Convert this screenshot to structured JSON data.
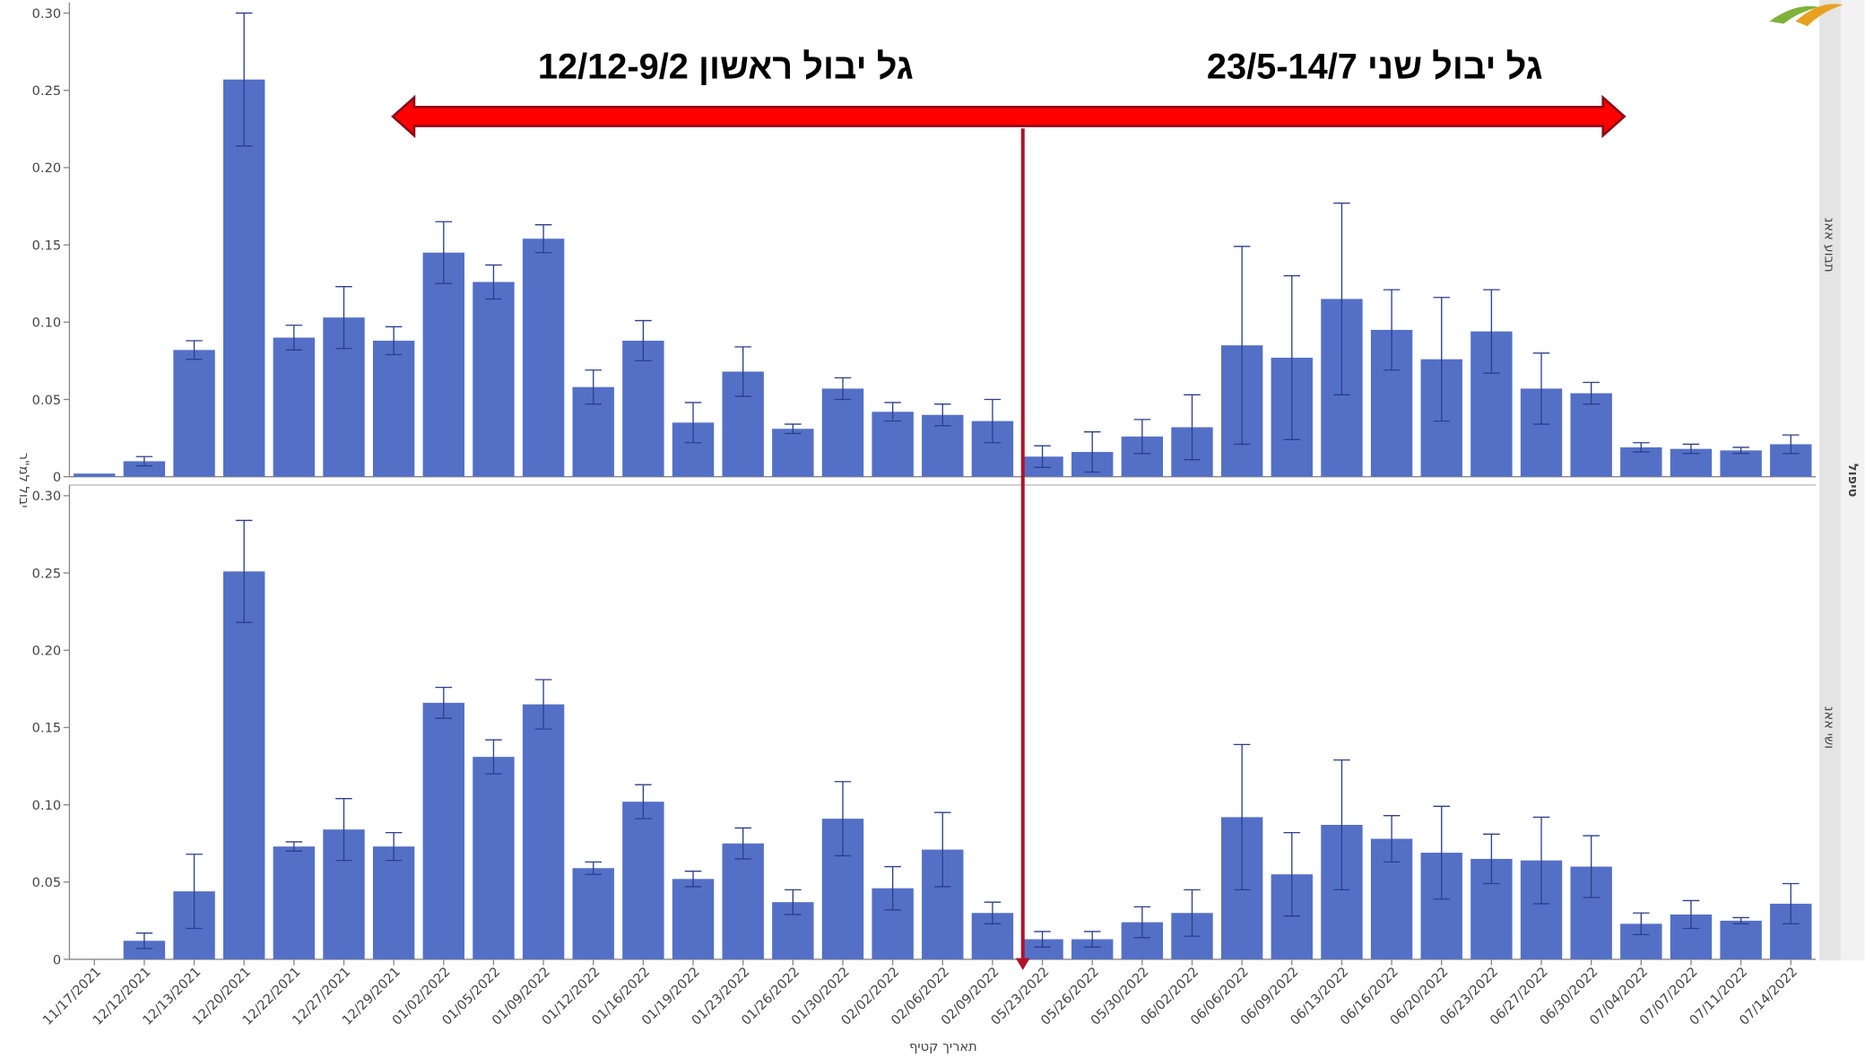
{
  "chart_data": [
    {
      "type": "bar",
      "panel_label": "תבוע אאנ",
      "color": "#5470c6",
      "y_label": "יבול למ\"ר",
      "annotations": [
        "גל יבול ראשון 12/12-9/2",
        "גל יבול שני 23/5-14/7"
      ],
      "facet_label": "טיפול",
      "ylim": [
        0,
        0.3
      ],
      "yticks": [
        0,
        0.05,
        {
          "value": 0.1,
          "label": "0.10"
        },
        0.15,
        {
          "value": 0.2,
          "label": "0.20"
        },
        0.25,
        {
          "value": 0.3,
          "label": "0.30"
        }
      ],
      "values": [
        0.002,
        0.01,
        0.082,
        0.257,
        0.09,
        0.103,
        0.088,
        0.145,
        0.126,
        0.154,
        0.058,
        0.088,
        0.035,
        0.068,
        0.031,
        0.057,
        0.042,
        0.04,
        0.036,
        0.013,
        0.016,
        0.026,
        0.032,
        0.085,
        0.077,
        0.115,
        0.095,
        0.076,
        0.094,
        0.057,
        0.054,
        0.019,
        0.018,
        0.017,
        0.021
      ],
      "errors": [
        0.0,
        0.003,
        0.006,
        0.043,
        0.008,
        0.02,
        0.009,
        0.02,
        0.011,
        0.009,
        0.011,
        0.013,
        0.013,
        0.016,
        0.003,
        0.007,
        0.006,
        0.007,
        0.014,
        0.007,
        0.013,
        0.011,
        0.021,
        0.064,
        0.053,
        0.062,
        0.026,
        0.04,
        0.027,
        0.023,
        0.007,
        0.003,
        0.003,
        0.002,
        0.006
      ]
    },
    {
      "type": "bar",
      "panel_label": "ושי אאנ",
      "color": "#5470c6",
      "x_label": "תאריך קטיף",
      "ylim": [
        0,
        0.3
      ],
      "yticks": [
        0,
        0.05,
        {
          "value": 0.1,
          "label": "0.10"
        },
        0.15,
        {
          "value": 0.2,
          "label": "0.20"
        },
        0.25,
        {
          "value": 0.3,
          "label": "0.30"
        }
      ],
      "categories": [
        "11/17/2021",
        "12/12/2021",
        "12/13/2021",
        "12/20/2021",
        "12/22/2021",
        "12/27/2021",
        "12/29/2021",
        "01/02/2022",
        "01/05/2022",
        "01/09/2022",
        "01/12/2022",
        "01/16/2022",
        "01/19/2022",
        "01/23/2022",
        "01/26/2022",
        "01/30/2022",
        "02/02/2022",
        "02/06/2022",
        "02/09/2022",
        "05/23/2022",
        "05/26/2022",
        "05/30/2022",
        "06/02/2022",
        "06/06/2022",
        "06/09/2022",
        "06/13/2022",
        "06/16/2022",
        "06/20/2022",
        "06/23/2022",
        "06/27/2022",
        "06/30/2022",
        "07/04/2022",
        "07/07/2022",
        "07/11/2022",
        "07/14/2022"
      ],
      "values": [
        0,
        0.012,
        0.044,
        0.251,
        0.073,
        0.084,
        0.073,
        0.166,
        0.131,
        0.165,
        0.059,
        0.102,
        0.052,
        0.075,
        0.037,
        0.091,
        0.046,
        0.071,
        0.03,
        0.013,
        0.013,
        0.024,
        0.03,
        0.092,
        0.055,
        0.087,
        0.078,
        0.069,
        0.065,
        0.064,
        0.06,
        0.023,
        0.029,
        0.025,
        0.036
      ],
      "errors": [
        0,
        0.005,
        0.024,
        0.033,
        0.003,
        0.02,
        0.009,
        0.01,
        0.011,
        0.016,
        0.004,
        0.011,
        0.005,
        0.01,
        0.008,
        0.024,
        0.014,
        0.024,
        0.007,
        0.005,
        0.005,
        0.01,
        0.015,
        0.047,
        0.027,
        0.042,
        0.015,
        0.03,
        0.016,
        0.028,
        0.02,
        0.007,
        0.009,
        0.002,
        0.013
      ]
    }
  ]
}
